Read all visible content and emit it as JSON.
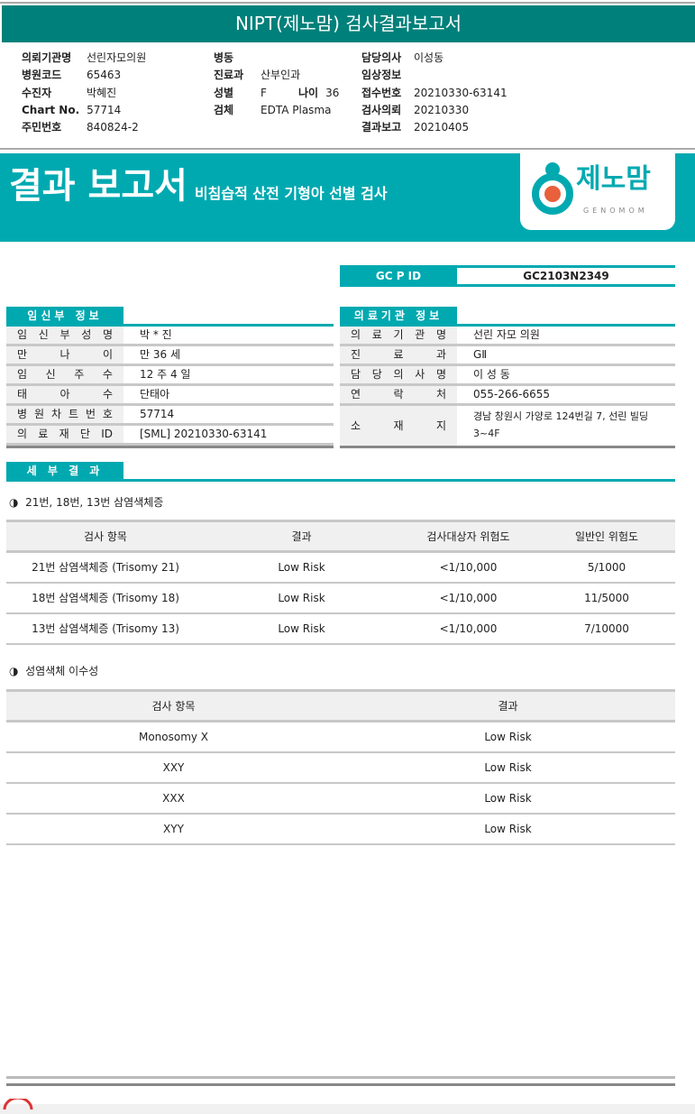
{
  "title": "NIPT(제노맘) 검사결과보고서",
  "header_info": [
    {
      "label": "의뢰기관명",
      "value": "선린자모의원"
    },
    {
      "label": "병원코드",
      "value": "65463"
    },
    {
      "label": "수진자",
      "value": "박혜진"
    },
    {
      "label": "Chart No.",
      "value": "57714"
    },
    {
      "label": "주민번호",
      "value": "840824-2"
    },
    {
      "label": "병동",
      "value": ""
    },
    {
      "label": "진료과",
      "value": "산부인과"
    },
    {
      "label": "성별",
      "value": "F"
    },
    {
      "label": "나이",
      "value": "36"
    },
    {
      "label": "검체",
      "value": "EDTA Plasma"
    },
    {
      "label": "담당의사",
      "value": "이성동"
    },
    {
      "label": "임상정보",
      "value": ""
    },
    {
      "label": "접수번호",
      "value": "20210330-63141"
    },
    {
      "label": "검사의뢰",
      "value": "20210330"
    },
    {
      "label": "결과보고",
      "value": "20210405"
    }
  ],
  "banner": {
    "title": "결과 보고서",
    "subtitle": "비침습적 산전 기형아 선별 검사",
    "logo_text": "제노맘",
    "logo_sub": "GENOMOM",
    "color": "#00a9b0"
  },
  "gcp": {
    "label": "GC P ID",
    "value": "GC2103N2349"
  },
  "pregnant": {
    "title": "임신부 정보",
    "rows": [
      {
        "label": [
          "임",
          "신",
          "부",
          "성",
          "명"
        ],
        "value": "박 * 진"
      },
      {
        "label": [
          "만",
          "나",
          "이"
        ],
        "value": "만 36 세"
      },
      {
        "label": [
          "임",
          "신",
          "주",
          "수"
        ],
        "value": "12 주 4 일"
      },
      {
        "label": [
          "태",
          "아",
          "수"
        ],
        "value": "단태아"
      },
      {
        "label": [
          "병",
          "원",
          "차",
          "트",
          "번",
          "호"
        ],
        "value": "57714"
      },
      {
        "label": [
          "의",
          "료",
          "재",
          "단",
          "ID"
        ],
        "value": "[SML] 20210330-63141"
      }
    ]
  },
  "institution": {
    "title": "의료기관 정보",
    "rows": [
      {
        "label": [
          "의",
          "료",
          "기",
          "관",
          "명"
        ],
        "value": "선린 자모 의원"
      },
      {
        "label": [
          "진",
          "료",
          "과"
        ],
        "value": "GⅡ"
      },
      {
        "label": [
          "담",
          "당",
          "의",
          "사",
          "명"
        ],
        "value": "이 성 동"
      },
      {
        "label": [
          "연",
          "락",
          "처"
        ],
        "value": "055-266-6655"
      },
      {
        "label": [
          "소",
          "재",
          "지"
        ],
        "value": "경남 창원시 가양로 124번길 7, 선린 빌딩 3~4F"
      }
    ]
  },
  "detail_title": "세 부 결 과",
  "section1": {
    "title": "21번, 18번, 13번 삼염색체증",
    "headers": [
      "검사 항목",
      "결과",
      "검사대상자 위험도",
      "일반인 위험도"
    ],
    "rows": [
      [
        "21번 삼염색체증 (Trisomy 21)",
        "Low Risk",
        "<1/10,000",
        "5/1000"
      ],
      [
        "18번 삼염색체증 (Trisomy 18)",
        "Low Risk",
        "<1/10,000",
        "11/5000"
      ],
      [
        "13번 삼염색체증 (Trisomy 13)",
        "Low Risk",
        "<1/10,000",
        "7/10000"
      ]
    ]
  },
  "section2": {
    "title": "성염색체 이수성",
    "headers": [
      "검사 항목",
      "결과"
    ],
    "rows": [
      [
        "Monosomy X",
        "Low Risk"
      ],
      [
        "XXY",
        "Low Risk"
      ],
      [
        "XXX",
        "Low Risk"
      ],
      [
        "XYY",
        "Low Risk"
      ]
    ]
  }
}
